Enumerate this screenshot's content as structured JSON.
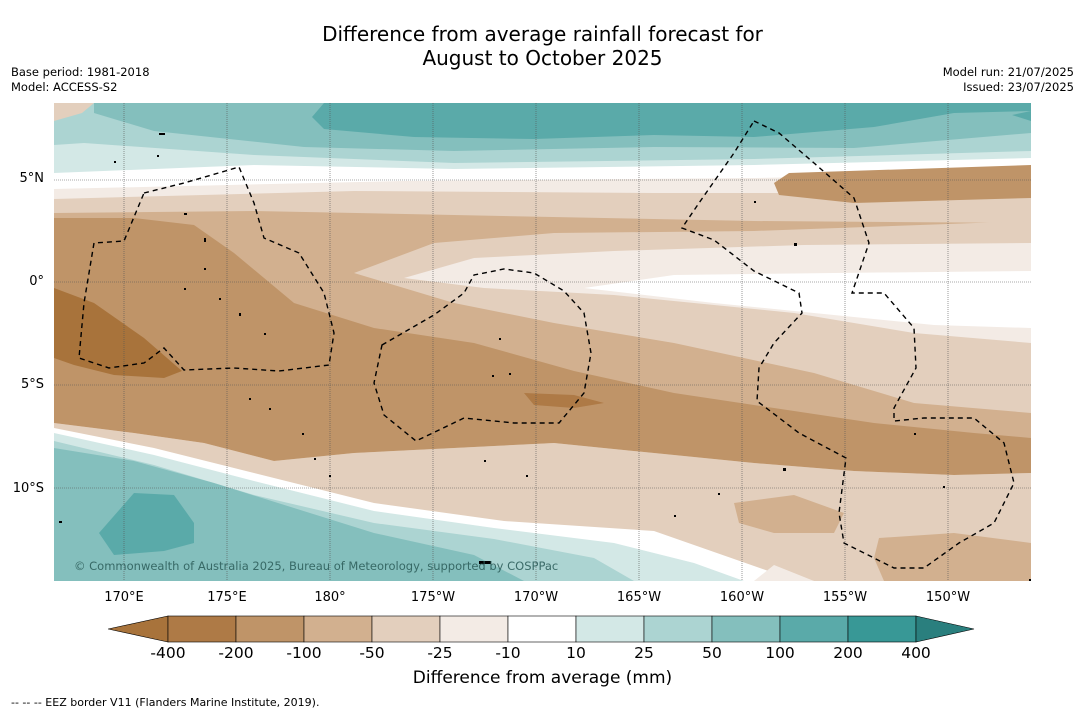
{
  "title_line1": "Difference from average rainfall forecast for",
  "title_line2": "August to October 2025",
  "base_period": "Base period: 1981-2018",
  "model": "Model: ACCESS-S2",
  "model_run": "Model run: 21/07/2025",
  "issued": "Issued: 23/07/2025",
  "copyright": "© Commonwealth of Australia 2025, Bureau of Meteorology, supported by COSPPac",
  "lat_labels": [
    "5°N",
    "0°",
    "5°S",
    "10°S"
  ],
  "lon_labels": [
    "170°E",
    "175°E",
    "180°",
    "175°W",
    "170°W",
    "165°W",
    "160°W",
    "155°W",
    "150°W"
  ],
  "colorbar": {
    "title": "Difference from average (mm)",
    "ticks": [
      "-400",
      "-200",
      "-100",
      "-50",
      "-25",
      "-10",
      "10",
      "25",
      "50",
      "100",
      "200",
      "400"
    ],
    "colors": [
      "#a8733b",
      "#ae7a46",
      "#bf9468",
      "#d2b08f",
      "#e3cfbd",
      "#f3ebe5",
      "#ffffff",
      "#d3e8e6",
      "#acd4d2",
      "#84bfbd",
      "#5aaaa9",
      "#389896",
      "#2a7f7e"
    ]
  },
  "footnote": "--  --  -- EEZ border V11 (Flanders Marine Institute, 2019)."
}
